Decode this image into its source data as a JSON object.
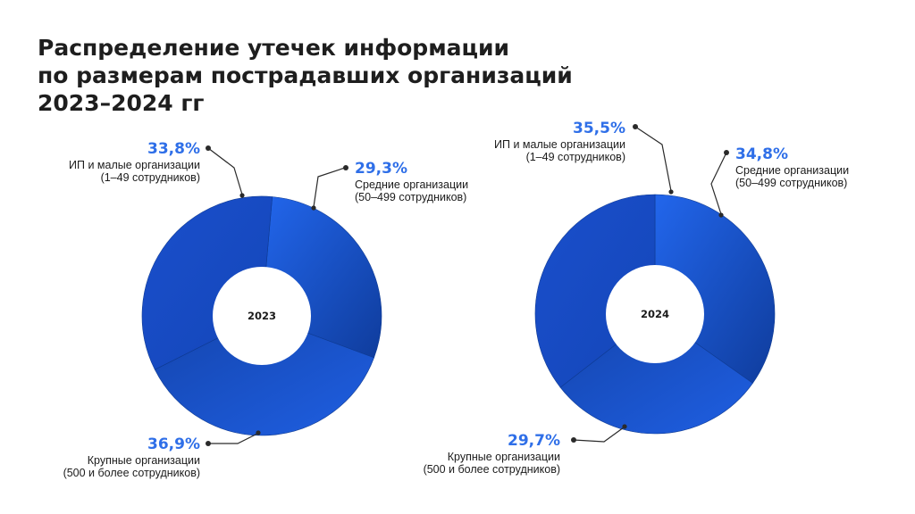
{
  "title_lines": [
    "Распределение утечек информации",
    "по размерам пострадавших организаций",
    "2023–2024 гг"
  ],
  "colors": {
    "slice": "#1d54d6",
    "slice_dark": "#123f9f",
    "slice_light": "#1f61e6",
    "pct_text": "#2f6fe8"
  },
  "chart_data": [
    {
      "type": "donut",
      "center_label": "2023",
      "categories": [
        "ИП и малые организации (1–49 сотрудников)",
        "Средние организации (50–499 сотрудников)",
        "Крупные организации (500 и более сотрудников)"
      ],
      "values": [
        33.8,
        29.3,
        36.9
      ],
      "pct_labels": [
        "33,8%",
        "29,3%",
        "36,9%"
      ],
      "slice_labels": [
        [
          "ИП и малые организации",
          "(1–49 сотрудников)"
        ],
        [
          "Средние организации",
          "(50–499 сотрудников)"
        ],
        [
          "Крупные организации",
          "(500 и более сотрудников)"
        ]
      ]
    },
    {
      "type": "donut",
      "center_label": "2024",
      "categories": [
        "ИП и малые организации (1–49 сотрудников)",
        "Средние организации (50–499 сотрудников)",
        "Крупные организации (500 и более сотрудников)"
      ],
      "values": [
        35.5,
        34.8,
        29.7
      ],
      "pct_labels": [
        "35,5%",
        "34,8%",
        "29,7%"
      ],
      "slice_labels": [
        [
          "ИП и малые организации",
          "(1–49 сотрудников)"
        ],
        [
          "Средние организации",
          "(50–499 сотрудников)"
        ],
        [
          "Крупные организации",
          "(500 и более сотрудников)"
        ]
      ]
    }
  ]
}
